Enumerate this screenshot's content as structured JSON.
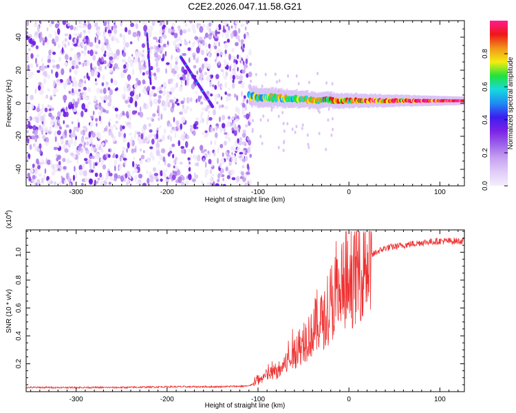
{
  "title": "C2E2.2026.047.11.58.G21",
  "chart_data": [
    {
      "type": "heatmap",
      "name": "Spectrogram",
      "xlabel": "Height of straight line (km)",
      "ylabel": "Frequency (Hz)",
      "xlim": [
        -355,
        127
      ],
      "ylim": [
        -50,
        50
      ],
      "xticks": [
        -300,
        -200,
        -100,
        0,
        100
      ],
      "xtick_labels": [
        "-300",
        "-200",
        "-100",
        "0",
        "100"
      ],
      "yticks": [
        -40,
        -20,
        0,
        20,
        40
      ],
      "ytick_labels": [
        "-40",
        "-20",
        "0",
        "20",
        "40"
      ],
      "colorbar": {
        "label": "Normalized spectral amplitude",
        "range": [
          0,
          1
        ],
        "ticks": [
          0.0,
          0.2,
          0.4,
          0.6,
          0.8
        ],
        "tick_labels": [
          "0.0",
          "0.2",
          "0.4",
          "0.6",
          "0.8"
        ],
        "colors": [
          "#f4eefc",
          "#e1cdf8",
          "#c7a2f1",
          "#9d63ea",
          "#7b22e6",
          "#3b1ef0",
          "#1e8cf2",
          "#16d9df",
          "#22e23a",
          "#f4ec12",
          "#f1951a",
          "#ee1717",
          "#ff1c8e"
        ]
      },
      "features": {
        "noise_region_x": [
          -355,
          -108
        ],
        "signal_band_x": [
          -110,
          127
        ],
        "signal_band_center_hz": [
          4,
          2,
          1.5,
          1.5
        ],
        "signal_band_center_x": [
          -110,
          -40,
          20,
          127
        ],
        "streak_a": {
          "x": [
            -222,
            -218
          ],
          "y": [
            42,
            12
          ]
        },
        "streak_b": {
          "x": [
            -185,
            -150
          ],
          "y": [
            28,
            -2
          ]
        }
      }
    },
    {
      "type": "line",
      "name": "SNR",
      "xlabel": "Height of straight line (km)",
      "ylabel": "SNR (10 * v/v)",
      "multiplier_label": "(x10",
      "multiplier_exp": "4",
      "multiplier_close": ")",
      "xlim": [
        -355,
        127
      ],
      "ylim": [
        0,
        1.16
      ],
      "xticks": [
        -300,
        -200,
        -100,
        0,
        100
      ],
      "xtick_labels": [
        "-300",
        "-200",
        "-100",
        "0",
        "100"
      ],
      "yticks": [
        0.2,
        0.4,
        0.6,
        0.8,
        1.0
      ],
      "ytick_labels": [
        "0.2",
        "0.4",
        "0.6",
        "0.8",
        "1.0"
      ],
      "color": "#ee3030",
      "series": [
        {
          "name": "SNR",
          "x": [
            -355,
            -300,
            -250,
            -200,
            -150,
            -110,
            -100,
            -90,
            -80,
            -70,
            -60,
            -50,
            -40,
            -30,
            -20,
            -15,
            -10,
            -5,
            0,
            10,
            20,
            30,
            40,
            60,
            80,
            100,
            127
          ],
          "y": [
            0.03,
            0.03,
            0.03,
            0.035,
            0.035,
            0.04,
            0.08,
            0.12,
            0.14,
            0.2,
            0.28,
            0.35,
            0.42,
            0.5,
            0.6,
            0.65,
            0.68,
            0.7,
            0.75,
            0.85,
            0.95,
            1.0,
            1.03,
            1.05,
            1.07,
            1.08,
            1.08
          ]
        }
      ]
    }
  ]
}
